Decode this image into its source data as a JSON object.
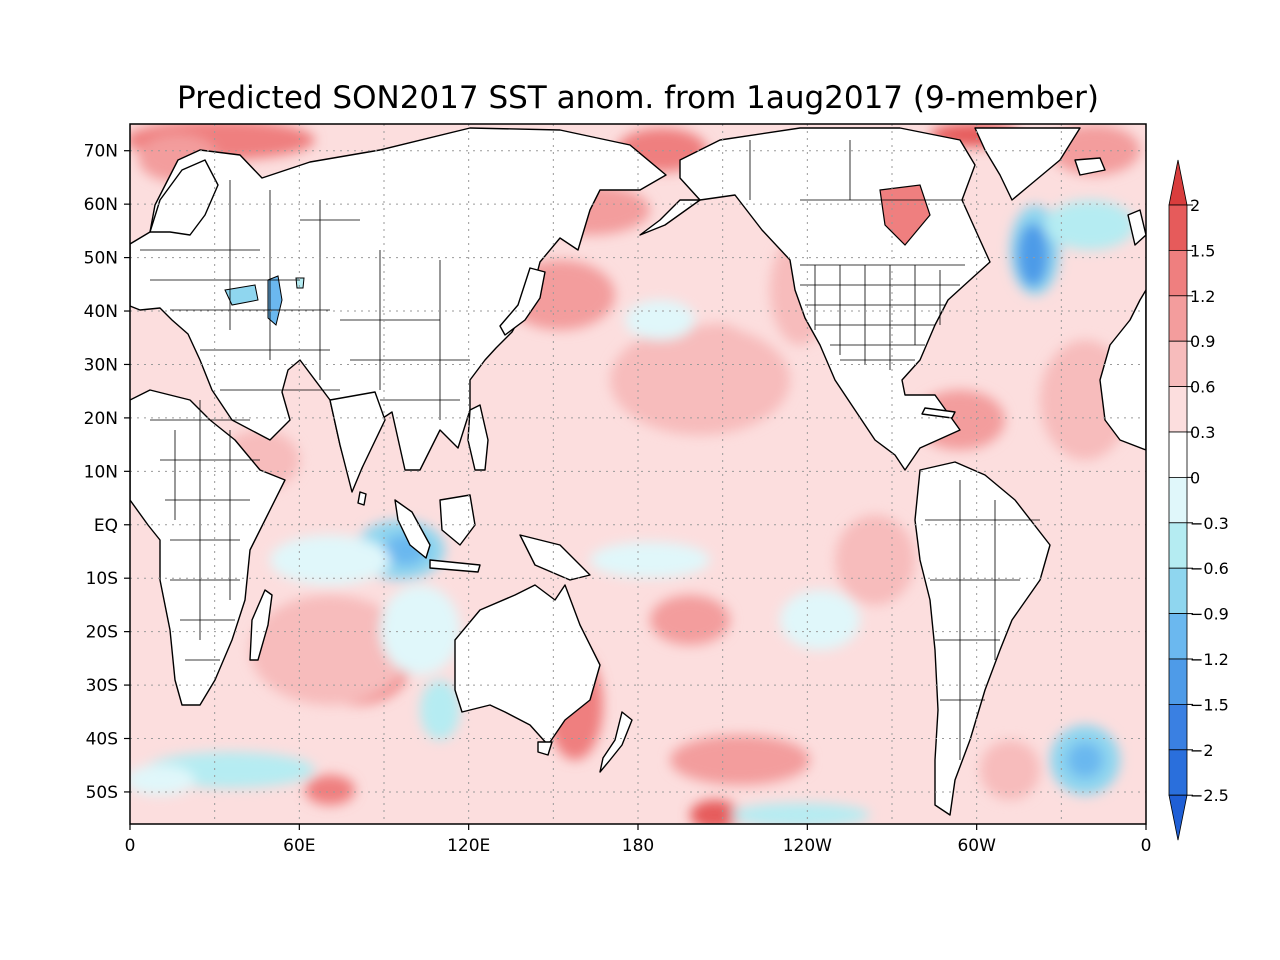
{
  "title": "Predicted SON2017 SST anom. from 1aug2017 (9-member)",
  "map": {
    "projection": "equirectangular",
    "lon_range": [
      0,
      360
    ],
    "lat_range": [
      -56,
      75
    ],
    "lat_ticks": [
      {
        "lat": 70,
        "label": "70N"
      },
      {
        "lat": 60,
        "label": "60N"
      },
      {
        "lat": 50,
        "label": "50N"
      },
      {
        "lat": 40,
        "label": "40N"
      },
      {
        "lat": 30,
        "label": "30N"
      },
      {
        "lat": 20,
        "label": "20N"
      },
      {
        "lat": 10,
        "label": "10N"
      },
      {
        "lat": 0,
        "label": "EQ"
      },
      {
        "lat": -10,
        "label": "10S"
      },
      {
        "lat": -20,
        "label": "20S"
      },
      {
        "lat": -30,
        "label": "30S"
      },
      {
        "lat": -40,
        "label": "40S"
      },
      {
        "lat": -50,
        "label": "50S"
      }
    ],
    "lon_ticks": [
      {
        "lon": 0,
        "label": "0"
      },
      {
        "lon": 60,
        "label": "60E"
      },
      {
        "lon": 120,
        "label": "120E"
      },
      {
        "lon": 180,
        "label": "180"
      },
      {
        "lon": 240,
        "label": "120W"
      },
      {
        "lon": 300,
        "label": "60W"
      },
      {
        "lon": 360,
        "label": "0"
      }
    ],
    "gridlines": "dotted",
    "ocean_base_color": "#fcdede"
  },
  "colorbar": {
    "levels": [
      {
        "label": "2",
        "value": 2
      },
      {
        "label": "1.5",
        "value": 1.5
      },
      {
        "label": "1.2",
        "value": 1.2
      },
      {
        "label": "0.9",
        "value": 0.9
      },
      {
        "label": "0.6",
        "value": 0.6
      },
      {
        "label": "0.3",
        "value": 0.3
      },
      {
        "label": "0",
        "value": 0
      },
      {
        "label": "−0.3",
        "value": -0.3
      },
      {
        "label": "−0.6",
        "value": -0.6
      },
      {
        "label": "−0.9",
        "value": -0.9
      },
      {
        "label": "−1.2",
        "value": -1.2
      },
      {
        "label": "−1.5",
        "value": -1.5
      },
      {
        "label": "−2",
        "value": -2
      },
      {
        "label": "−2.5",
        "value": -2.5
      }
    ],
    "colors": [
      "#d93d3d",
      "#e65b5b",
      "#ef7f7f",
      "#f39d9d",
      "#f7bcbc",
      "#fcdede",
      "#ffffff",
      "#e0f7fa",
      "#b5ecf2",
      "#8fd6ef",
      "#6bb8ef",
      "#4e9be8",
      "#3a80e2",
      "#2a6fdc",
      "#1f5fd6"
    ],
    "extend": "both"
  },
  "anomaly_features": [
    {
      "region": "North Atlantic off Newfoundland",
      "lon": 318,
      "lat": 47,
      "value": -1.5
    },
    {
      "region": "Eastern Indian Ocean off Sumatra",
      "lon": 98,
      "lat": -5,
      "value": -1.2
    },
    {
      "region": "Central North Pacific",
      "lon": 210,
      "lat": 30,
      "value": 0.9
    },
    {
      "region": "Northwest Pacific off Japan",
      "lon": 155,
      "lat": 40,
      "value": 0.9
    },
    {
      "region": "Bering Sea",
      "lon": 185,
      "lat": 64,
      "value": 1.2
    },
    {
      "region": "Barents Sea",
      "lon": 35,
      "lat": 72,
      "value": 1.5
    },
    {
      "region": "Labrador Sea",
      "lon": 305,
      "lat": 70,
      "value": 1.5
    },
    {
      "region": "Hudson Bay",
      "lon": 275,
      "lat": 58,
      "value": 1.2
    },
    {
      "region": "South Indian Ocean",
      "lon": 80,
      "lat": -30,
      "value": 0.9
    },
    {
      "region": "Tasman Sea",
      "lon": 160,
      "lat": -37,
      "value": 0.9
    },
    {
      "region": "South Atlantic",
      "lon": 335,
      "lat": -45,
      "value": -0.9
    },
    {
      "region": "Southern Ocean south of Africa",
      "lon": 35,
      "lat": -50,
      "value": -0.6
    },
    {
      "region": "Black Sea and Caspian",
      "lon": 45,
      "lat": 43,
      "value": -0.9
    }
  ]
}
